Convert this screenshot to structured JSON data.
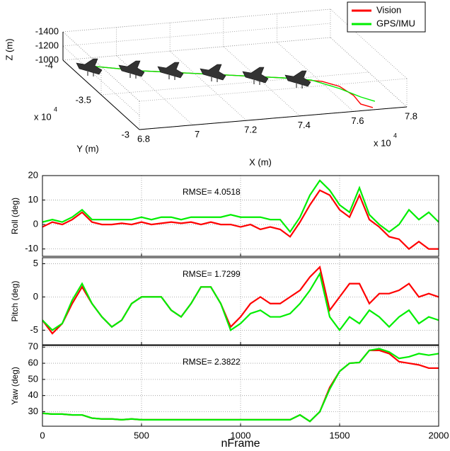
{
  "chart_data": [
    {
      "type": "line3d",
      "xlabel": "X (m)",
      "ylabel": "Y (m)",
      "zlabel": "Z (m)",
      "xscale": {
        "base": "x 10",
        "exp": "4"
      },
      "yscale": {
        "base": "x 10",
        "exp": "4"
      },
      "xlim": [
        6.8,
        7.8
      ],
      "xticks": [
        6.8,
        7,
        7.2,
        7.4,
        7.6,
        7.8
      ],
      "ylim": [
        -3,
        -4
      ],
      "yticks": [
        -4,
        -3.5,
        -3
      ],
      "zlim": [
        -1000,
        -1400
      ],
      "zticks": [
        -1400,
        -1200,
        -1000
      ],
      "grid": true,
      "legend": "upper right",
      "series": [
        {
          "name": "Vision",
          "color": "#ff0000",
          "x": [
            6.844,
            7.029,
            7.257,
            7.486,
            7.606,
            7.647,
            7.661,
            7.653,
            7.681
          ],
          "y": [
            -3.914,
            -3.772,
            -3.647,
            -3.521,
            -3.431,
            -3.346,
            -3.209,
            -3.089,
            -3.029
          ],
          "z": [
            -1000,
            -1000,
            -1000,
            -1000,
            -1000,
            -1000,
            -1000,
            -1000,
            -1000
          ]
        },
        {
          "name": "GPS/IMU",
          "color": "#00ee00",
          "x": [
            6.844,
            7.029,
            7.257,
            7.486,
            7.575,
            7.639,
            7.68,
            7.712
          ],
          "y": [
            -3.914,
            -3.772,
            -3.647,
            -3.521,
            -3.461,
            -3.318,
            -3.182,
            -3.11
          ],
          "z": [
            -1000,
            -1000,
            -1000,
            -1000,
            -1000,
            -1000,
            -1000,
            -1000
          ]
        }
      ]
    },
    {
      "type": "line",
      "ylabel": "Roll (deg)",
      "annotation": "RMSE= 4.0518",
      "xlim": [
        0,
        2000
      ],
      "xticks": [
        0,
        500,
        1000,
        1500,
        2000
      ],
      "ylim": [
        -13,
        20
      ],
      "yticks": [
        -10,
        0,
        10,
        20
      ],
      "grid": true,
      "x": [
        0,
        50,
        100,
        150,
        200,
        250,
        300,
        350,
        400,
        450,
        500,
        550,
        600,
        650,
        700,
        750,
        800,
        850,
        900,
        950,
        1000,
        1050,
        1100,
        1150,
        1200,
        1250,
        1300,
        1350,
        1400,
        1450,
        1500,
        1550,
        1600,
        1650,
        1700,
        1750,
        1800,
        1850,
        1900,
        1950,
        2000
      ],
      "series": [
        {
          "color": "#ff0000",
          "values": [
            -1,
            1,
            0,
            2,
            5,
            1,
            0,
            0,
            0.5,
            0,
            1,
            0,
            0.5,
            1,
            0.5,
            1,
            0,
            1,
            0,
            0,
            -1,
            0,
            -2,
            -1,
            -2,
            -5,
            1,
            8,
            14,
            12,
            6,
            3,
            12,
            2,
            -1,
            -5,
            -6,
            -10,
            -7,
            -10,
            -10
          ]
        },
        {
          "color": "#00ee00",
          "values": [
            1,
            2,
            1,
            3,
            6,
            2,
            2,
            2,
            2,
            2,
            3,
            2,
            3,
            3,
            2,
            3,
            3,
            3,
            3,
            4,
            3,
            3,
            3,
            2,
            2,
            -3,
            3,
            12,
            18,
            14,
            8,
            5,
            15,
            4,
            0,
            -3,
            0,
            6,
            2,
            5,
            1
          ]
        }
      ]
    },
    {
      "type": "line",
      "ylabel": "Pitch (deg)",
      "annotation": "RMSE= 1.7299",
      "xlim": [
        0,
        2000
      ],
      "xticks": [
        0,
        500,
        1000,
        1500,
        2000
      ],
      "ylim": [
        -7.2,
        5.9
      ],
      "yticks": [
        -5,
        0,
        5
      ],
      "grid": true,
      "x": [
        0,
        50,
        100,
        150,
        200,
        250,
        300,
        350,
        400,
        450,
        500,
        550,
        600,
        650,
        700,
        750,
        800,
        850,
        900,
        950,
        1000,
        1050,
        1100,
        1150,
        1200,
        1250,
        1300,
        1350,
        1400,
        1450,
        1500,
        1550,
        1600,
        1650,
        1700,
        1750,
        1800,
        1850,
        1900,
        1950,
        2000
      ],
      "series": [
        {
          "color": "#ff0000",
          "values": [
            -3.5,
            -5.5,
            -4,
            -1,
            1.5,
            -1,
            -3,
            -4.5,
            -3.5,
            -1,
            0,
            0,
            0,
            -2,
            -3,
            -1,
            1.5,
            1.5,
            -1,
            -4.5,
            -3,
            -1,
            0,
            -1,
            -1,
            0,
            1,
            3,
            4.5,
            -2,
            0,
            2,
            2,
            -1,
            0.5,
            0.5,
            1,
            2,
            0,
            0.5,
            0
          ]
        },
        {
          "color": "#00ee00",
          "values": [
            -3.5,
            -5,
            -4,
            -0.5,
            2,
            -1,
            -3,
            -4.5,
            -3.5,
            -1,
            0,
            0,
            0,
            -2,
            -3,
            -1,
            1.5,
            1.5,
            -1,
            -5,
            -4,
            -2.5,
            -2,
            -3,
            -3,
            -2.5,
            -1,
            1,
            3.5,
            -3,
            -5,
            -3,
            -4,
            -2,
            -3,
            -4.5,
            -3,
            -2,
            -4,
            -3,
            -3.5
          ]
        }
      ]
    },
    {
      "type": "line",
      "ylabel": "Yaw (deg)",
      "annotation": "RMSE= 2.3822",
      "xlabel": "nFrame",
      "xticklabels": true,
      "xlim": [
        0,
        2000
      ],
      "xticks": [
        0,
        500,
        1000,
        1500,
        2000
      ],
      "ylim": [
        21,
        71
      ],
      "yticks": [
        30,
        40,
        50,
        60,
        70
      ],
      "grid": true,
      "x": [
        0,
        50,
        100,
        150,
        200,
        250,
        300,
        350,
        400,
        450,
        500,
        550,
        600,
        650,
        700,
        750,
        800,
        850,
        900,
        950,
        1000,
        1050,
        1100,
        1150,
        1200,
        1250,
        1300,
        1350,
        1400,
        1450,
        1500,
        1550,
        1600,
        1650,
        1700,
        1750,
        1800,
        1850,
        1900,
        1950,
        2000
      ],
      "series": [
        {
          "color": "#ff0000",
          "values": [
            29,
            28.5,
            28.5,
            28,
            28,
            26,
            25.5,
            25.5,
            25,
            25.5,
            25,
            25,
            25,
            25,
            25,
            25,
            25,
            25,
            25,
            25,
            25,
            25,
            25,
            25,
            25,
            25,
            28,
            24,
            30,
            45,
            55,
            60,
            60.5,
            68,
            68,
            66,
            61,
            60,
            59,
            57,
            57
          ]
        },
        {
          "color": "#00ee00",
          "values": [
            29,
            28.5,
            28.5,
            28,
            28,
            26,
            25.5,
            25.5,
            25,
            25.5,
            25,
            25,
            25,
            25,
            25,
            25,
            25,
            25,
            25,
            25,
            25,
            25,
            25,
            25,
            25,
            25,
            28,
            24,
            30,
            44,
            55,
            60,
            60.5,
            68,
            69,
            67,
            63,
            64,
            66,
            65,
            66
          ]
        }
      ]
    }
  ]
}
